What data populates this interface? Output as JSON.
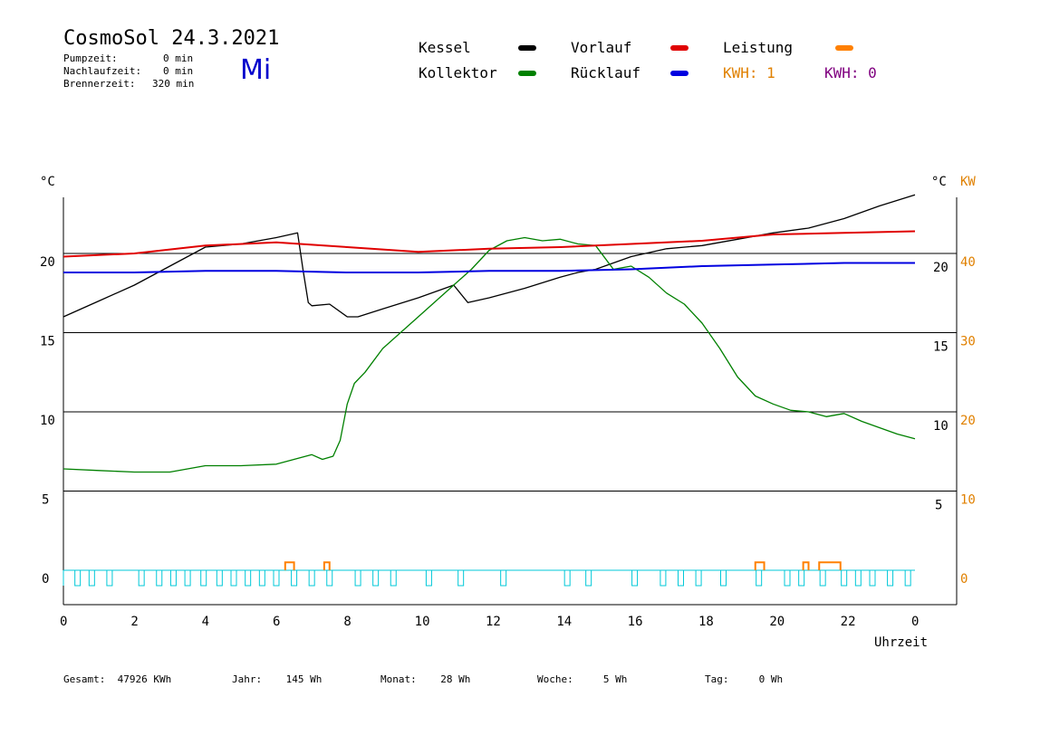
{
  "header": {
    "title": "CosmoSol 24.3.2021",
    "weekday": "Mi",
    "info_lines": [
      {
        "label": "Pumpzeit:",
        "value": "0 min"
      },
      {
        "label": "Nachlaufzeit:",
        "value": "0 min"
      },
      {
        "label": "Brennerzeit:",
        "value": "320 min"
      }
    ]
  },
  "legend": {
    "items": [
      {
        "label": "Kessel",
        "color": "#000000"
      },
      {
        "label": "Kollektor",
        "color": "#008000"
      },
      {
        "label": "Vorlauf",
        "color": "#e00000"
      },
      {
        "label": "Rücklauf",
        "color": "#0000e0"
      },
      {
        "label": "Leistung",
        "color": "#ff8000"
      }
    ],
    "kwh_1": "KWH: 1",
    "kwh_2": "KWH: 0",
    "kwh_1_color": "#e08000",
    "kwh_2_color": "#800080"
  },
  "axes": {
    "left_unit": "°C",
    "right_unit": "°C",
    "right_unit2": "KW",
    "xlabel": "Uhrzeit"
  },
  "footer": {
    "gesamt": {
      "label": "Gesamt:",
      "value": "47926 KWh"
    },
    "jahr": {
      "label": "Jahr:",
      "value": "145 Wh"
    },
    "monat": {
      "label": "Monat:",
      "value": "28 Wh"
    },
    "woche": {
      "label": "Woche:",
      "value": "5 Wh"
    },
    "tag": {
      "label": "Tag:",
      "value": "0 Wh"
    }
  },
  "chart_data": {
    "type": "line",
    "xlabel": "Uhrzeit",
    "ylabel": "°C",
    "xlim": [
      0,
      24
    ],
    "ylim": [
      -1.5,
      24.5
    ],
    "x_ticks": [
      "0",
      "2",
      "4",
      "6",
      "8",
      "10",
      "12",
      "14",
      "16",
      "18",
      "20",
      "22",
      "0"
    ],
    "y_ticks_left": [
      0,
      5,
      10,
      15,
      20
    ],
    "y_ticks_right_temp": [
      5,
      10,
      15,
      20
    ],
    "y_ticks_right_kw": [
      0,
      10,
      20,
      30,
      40
    ],
    "grid": "horizontal at 5,10,15,20",
    "series": [
      {
        "name": "Kessel",
        "color": "#000000",
        "x": [
          0,
          1,
          2,
          3,
          4,
          5,
          6,
          6.6,
          6.75,
          6.9,
          7,
          7.5,
          8,
          8.3,
          9,
          10,
          11,
          11.4,
          12,
          13,
          14,
          14.5,
          15,
          16,
          17,
          18,
          19,
          20,
          21,
          22,
          23,
          24
        ],
        "y": [
          16,
          17,
          18,
          19.2,
          20.4,
          20.6,
          21,
          21.3,
          19,
          16.9,
          16.7,
          16.8,
          16,
          16,
          16.5,
          17.2,
          18,
          16.9,
          17.2,
          17.8,
          18.5,
          18.8,
          19,
          19.8,
          20.3,
          20.5,
          20.9,
          21.3,
          21.6,
          22.2,
          23,
          23.7
        ]
      },
      {
        "name": "Kollektor",
        "color": "#008000",
        "x": [
          0,
          1,
          2,
          3,
          4,
          5,
          6,
          6.5,
          7,
          7.3,
          7.6,
          7.8,
          8,
          8.2,
          8.5,
          9,
          10,
          11,
          11.5,
          12,
          12.5,
          13,
          13.5,
          14,
          14.5,
          15,
          15.5,
          16,
          16.5,
          17,
          17.5,
          18,
          18.5,
          19,
          19.5,
          20,
          20.5,
          21,
          21.5,
          22,
          22.5,
          23,
          23.5,
          24
        ],
        "y": [
          6.4,
          6.3,
          6.2,
          6.2,
          6.6,
          6.6,
          6.7,
          7.0,
          7.3,
          7.0,
          7.2,
          8.2,
          10.5,
          11.8,
          12.5,
          14.0,
          16.0,
          18.0,
          19.0,
          20.2,
          20.8,
          21.0,
          20.8,
          20.9,
          20.6,
          20.5,
          19.0,
          19.2,
          18.5,
          17.5,
          16.8,
          15.6,
          14.0,
          12.2,
          11.0,
          10.5,
          10.1,
          10.0,
          9.7,
          9.9,
          9.4,
          9.0,
          8.6,
          8.3
        ]
      },
      {
        "name": "Vorlauf",
        "color": "#e00000",
        "x": [
          0,
          2,
          4,
          6,
          8,
          10,
          12,
          14,
          16,
          18,
          20,
          22,
          24
        ],
        "y": [
          19.8,
          20.0,
          20.5,
          20.7,
          20.4,
          20.1,
          20.3,
          20.4,
          20.6,
          20.8,
          21.2,
          21.3,
          21.4
        ]
      },
      {
        "name": "Rücklauf",
        "color": "#0000e0",
        "x": [
          0,
          2,
          4,
          6,
          8,
          10,
          12,
          14,
          16,
          18,
          20,
          22,
          24
        ],
        "y": [
          18.8,
          18.8,
          18.9,
          18.9,
          18.8,
          18.8,
          18.9,
          18.9,
          19.0,
          19.2,
          19.3,
          19.4,
          19.4
        ]
      }
    ],
    "pump_pulses_hours": [
      0.4,
      0.8,
      1.3,
      2.2,
      2.7,
      3.1,
      3.5,
      3.95,
      4.4,
      4.8,
      5.2,
      5.6,
      6.0,
      6.5,
      7.0,
      7.5,
      8.3,
      8.8,
      9.3,
      10.3,
      11.2,
      12.4,
      14.2,
      14.8,
      16.1,
      16.9,
      17.4,
      17.9,
      18.6,
      19.6,
      20.4,
      20.8,
      21.4,
      22.0,
      22.4,
      22.8,
      23.3,
      23.8
    ],
    "leistung_pulses": [
      {
        "start": 6.25,
        "end": 6.5,
        "kw": 2
      },
      {
        "start": 7.35,
        "end": 7.5,
        "kw": 2
      },
      {
        "start": 19.5,
        "end": 19.75,
        "kw": 2
      },
      {
        "start": 20.85,
        "end": 21.0,
        "kw": 2
      },
      {
        "start": 21.3,
        "end": 21.9,
        "kw": 2
      }
    ]
  }
}
